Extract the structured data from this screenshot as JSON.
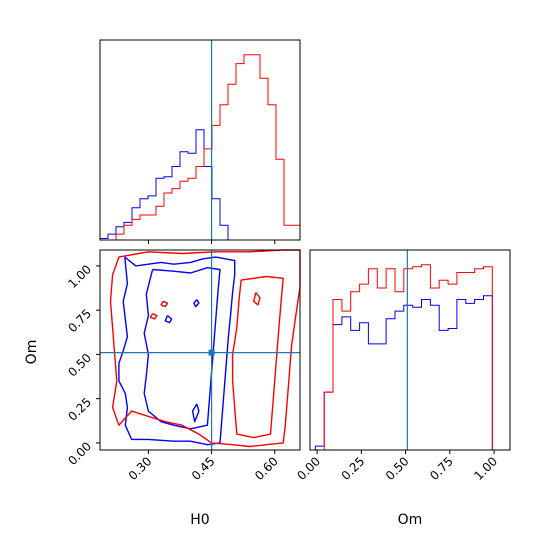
{
  "chart_data": {
    "type": "corner",
    "colors": {
      "blue": "#0000ff",
      "red": "#ff0000",
      "truth": "#1f77b4"
    },
    "parameters": [
      "H0",
      "Om"
    ],
    "truth": {
      "H0": 0.45,
      "Om": 0.51
    },
    "panels": [
      {
        "id": "h0-hist",
        "type": "histogram",
        "xlim": [
          0.185,
          0.66
        ],
        "bins": [
          0.185,
          0.204,
          0.223,
          0.242,
          0.261,
          0.28,
          0.299,
          0.318,
          0.337,
          0.356,
          0.375,
          0.394,
          0.413,
          0.432,
          0.451,
          0.47,
          0.489,
          0.508,
          0.527,
          0.546,
          0.565,
          0.584,
          0.603,
          0.622,
          0.641,
          0.66
        ],
        "series": [
          {
            "color": "blue",
            "values": [
              1,
              4,
              9,
              12,
              22,
              28,
              30,
              42,
              43,
              50,
              60,
              59,
              75,
              50,
              28,
              10,
              0,
              0,
              0,
              0,
              0,
              0,
              0,
              0,
              0
            ]
          },
          {
            "color": "red",
            "values": [
              0,
              0,
              4,
              10,
              14,
              17,
              17,
              23,
              32,
              35,
              40,
              42,
              50,
              62,
              78,
              92,
              106,
              120,
              126,
              126,
              110,
              92,
              55,
              10,
              10
            ]
          }
        ]
      },
      {
        "id": "h0-om-contour",
        "type": "contour",
        "xlim": [
          0.185,
          0.66
        ],
        "ylim": [
          -0.04,
          1.09
        ],
        "xlabel": "H0",
        "ylabel": "Om",
        "xticks": [
          "0.30",
          "0.45",
          "0.60"
        ],
        "yticks": [
          "0.00",
          "0.25",
          "0.50",
          "0.75",
          "1.00"
        ],
        "contours": [
          {
            "color": "blue",
            "points": [
              [
                0.244,
                1.05
              ],
              [
                0.27,
                1.0
              ],
              [
                0.3,
                1.01
              ],
              [
                0.33,
                1.02
              ],
              [
                0.36,
                1.01
              ],
              [
                0.4,
                1.02
              ],
              [
                0.43,
                1.04
              ],
              [
                0.46,
                1.05
              ],
              [
                0.505,
                1.03
              ],
              [
                0.505,
                0.95
              ],
              [
                0.5,
                0.85
              ],
              [
                0.495,
                0.72
              ],
              [
                0.49,
                0.6
              ],
              [
                0.485,
                0.45
              ],
              [
                0.48,
                0.3
              ],
              [
                0.475,
                0.15
              ],
              [
                0.47,
                0.0
              ],
              [
                0.44,
                -0.01
              ],
              [
                0.4,
                0.01
              ],
              [
                0.36,
                0.01
              ],
              [
                0.3,
                0.02
              ],
              [
                0.26,
                0.02
              ],
              [
                0.245,
                0.1
              ],
              [
                0.25,
                0.2
              ],
              [
                0.245,
                0.28
              ],
              [
                0.23,
                0.35
              ],
              [
                0.23,
                0.45
              ],
              [
                0.24,
                0.52
              ],
              [
                0.25,
                0.6
              ],
              [
                0.245,
                0.7
              ],
              [
                0.24,
                0.8
              ],
              [
                0.25,
                0.9
              ],
              [
                0.244,
                1.05
              ]
            ]
          },
          {
            "color": "blue",
            "points": [
              [
                0.31,
                0.98
              ],
              [
                0.36,
                0.97
              ],
              [
                0.4,
                0.96
              ],
              [
                0.44,
                0.99
              ],
              [
                0.47,
                0.98
              ],
              [
                0.465,
                0.85
              ],
              [
                0.46,
                0.7
              ],
              [
                0.455,
                0.55
              ],
              [
                0.45,
                0.4
              ],
              [
                0.445,
                0.25
              ],
              [
                0.44,
                0.1
              ],
              [
                0.4,
                0.08
              ],
              [
                0.36,
                0.1
              ],
              [
                0.33,
                0.12
              ],
              [
                0.3,
                0.18
              ],
              [
                0.29,
                0.28
              ],
              [
                0.295,
                0.38
              ],
              [
                0.3,
                0.5
              ],
              [
                0.29,
                0.62
              ],
              [
                0.3,
                0.72
              ],
              [
                0.295,
                0.84
              ],
              [
                0.31,
                0.98
              ]
            ]
          },
          {
            "color": "red",
            "points": [
              [
                0.3,
                1.08
              ],
              [
                0.38,
                1.07
              ],
              [
                0.46,
                1.08
              ],
              [
                0.54,
                1.08
              ],
              [
                0.62,
                1.09
              ],
              [
                0.66,
                1.09
              ],
              [
                0.66,
                0.88
              ],
              [
                0.65,
                0.72
              ],
              [
                0.64,
                0.55
              ],
              [
                0.635,
                0.4
              ],
              [
                0.63,
                0.25
              ],
              [
                0.625,
                0.1
              ],
              [
                0.62,
                0.0
              ],
              [
                0.58,
                -0.01
              ],
              [
                0.54,
                -0.02
              ],
              [
                0.5,
                -0.01
              ],
              [
                0.45,
                0.0
              ],
              [
                0.42,
                0.05
              ],
              [
                0.38,
                0.1
              ],
              [
                0.34,
                0.12
              ],
              [
                0.3,
                0.15
              ],
              [
                0.26,
                0.18
              ],
              [
                0.23,
                0.1
              ],
              [
                0.215,
                0.2
              ],
              [
                0.225,
                0.35
              ],
              [
                0.22,
                0.5
              ],
              [
                0.215,
                0.65
              ],
              [
                0.21,
                0.8
              ],
              [
                0.215,
                0.95
              ],
              [
                0.23,
                1.05
              ],
              [
                0.3,
                1.08
              ]
            ]
          },
          {
            "color": "red",
            "points": [
              [
                0.52,
                0.92
              ],
              [
                0.58,
                0.94
              ],
              [
                0.62,
                0.93
              ],
              [
                0.615,
                0.8
              ],
              [
                0.61,
                0.65
              ],
              [
                0.605,
                0.5
              ],
              [
                0.6,
                0.35
              ],
              [
                0.595,
                0.2
              ],
              [
                0.59,
                0.05
              ],
              [
                0.55,
                0.03
              ],
              [
                0.51,
                0.05
              ],
              [
                0.505,
                0.2
              ],
              [
                0.5,
                0.35
              ],
              [
                0.5,
                0.5
              ],
              [
                0.51,
                0.65
              ],
              [
                0.515,
                0.8
              ],
              [
                0.52,
                0.92
              ]
            ]
          },
          {
            "color": "red",
            "points": [
              [
                0.555,
                0.85
              ],
              [
                0.565,
                0.82
              ],
              [
                0.56,
                0.78
              ],
              [
                0.55,
                0.8
              ],
              [
                0.555,
                0.85
              ]
            ]
          },
          {
            "color": "red",
            "points": [
              [
                0.31,
                0.73
              ],
              [
                0.32,
                0.72
              ],
              [
                0.315,
                0.7
              ],
              [
                0.305,
                0.71
              ],
              [
                0.31,
                0.73
              ]
            ]
          },
          {
            "color": "red",
            "points": [
              [
                0.335,
                0.8
              ],
              [
                0.345,
                0.79
              ],
              [
                0.34,
                0.77
              ],
              [
                0.33,
                0.78
              ],
              [
                0.335,
                0.8
              ]
            ]
          },
          {
            "color": "blue",
            "points": [
              [
                0.345,
                0.72
              ],
              [
                0.355,
                0.7
              ],
              [
                0.35,
                0.68
              ],
              [
                0.34,
                0.69
              ],
              [
                0.345,
                0.72
              ]
            ]
          },
          {
            "color": "blue",
            "points": [
              [
                0.415,
                0.81
              ],
              [
                0.42,
                0.79
              ],
              [
                0.412,
                0.77
              ],
              [
                0.408,
                0.79
              ],
              [
                0.415,
                0.81
              ]
            ]
          },
          {
            "color": "blue",
            "points": [
              [
                0.415,
                0.22
              ],
              [
                0.42,
                0.18
              ],
              [
                0.41,
                0.12
              ],
              [
                0.405,
                0.18
              ],
              [
                0.415,
                0.22
              ]
            ]
          }
        ]
      },
      {
        "id": "om-hist",
        "type": "histogram",
        "xlim": [
          -0.04,
          1.09
        ],
        "xlabel": "Om",
        "xticks": [
          "0.00",
          "0.25",
          "0.50",
          "0.75",
          "1.00"
        ],
        "bins": [
          -0.01,
          0.04,
          0.09,
          0.14,
          0.19,
          0.24,
          0.29,
          0.34,
          0.39,
          0.44,
          0.49,
          0.54,
          0.59,
          0.64,
          0.69,
          0.74,
          0.79,
          0.84,
          0.89,
          0.94,
          0.99,
          1.04
        ],
        "series": [
          {
            "color": "blue",
            "values": [
              0.02,
              0.3,
              0.65,
              0.69,
              0.62,
              0.66,
              0.55,
              0.55,
              0.68,
              0.72,
              0.75,
              0.74,
              0.78,
              0.75,
              0.62,
              0.63,
              0.78,
              0.76,
              0.78,
              0.8,
              0.0
            ]
          },
          {
            "color": "red",
            "values": [
              0.0,
              0.3,
              0.78,
              0.72,
              0.82,
              0.86,
              0.94,
              0.84,
              0.94,
              0.82,
              0.94,
              0.95,
              0.96,
              0.84,
              0.88,
              0.86,
              0.92,
              0.92,
              0.94,
              0.95,
              0.0
            ]
          }
        ]
      }
    ]
  }
}
